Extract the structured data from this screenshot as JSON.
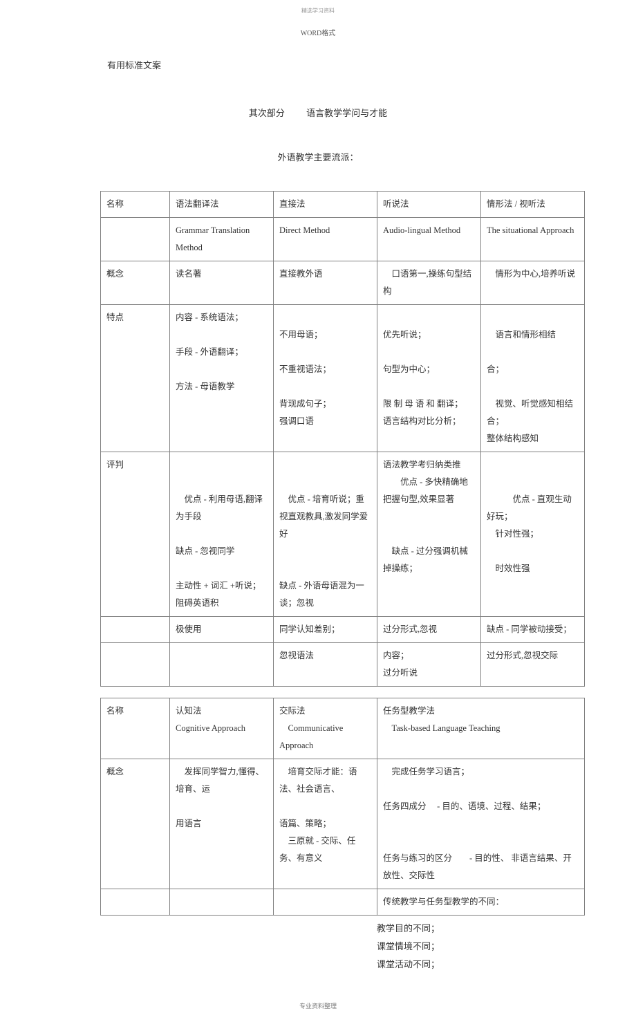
{
  "tiny_header": "精选学习资料",
  "word_format": "WORD格式",
  "pretext": "有用标准文案",
  "section_title_a": "其次部分",
  "section_title_b": "语言教学学问与才能",
  "subtitle": "外语教学主要流派：",
  "table1": {
    "r0c0": "名称",
    "r0c1": "语法翻译法",
    "r0c2": "直接法",
    "r0c3": "听说法",
    "r0c4": "情形法 / 视听法",
    "r1c0": "",
    "r1c1": "Grammar Translation Method",
    "r1c2": "Direct Method",
    "r1c3": "Audio-lingual Method",
    "r1c4": "The situational Approach",
    "r2c0": "概念",
    "r2c1": "读名著",
    "r2c2": "直接教外语",
    "r2c3": "　口语第一,操练句型结构",
    "r2c4": "　情形为中心,培养听说",
    "r3c0": "特点",
    "r3c1": "内容 - 系统语法；\n\n手段 - 外语翻译；\n\n方法 - 母语教学",
    "r3c2": "\n不用母语；\n\n不重视语法；\n\n背现成句子；\n强调口语",
    "r3c3": "\n优先听说；\n\n句型为中心；\n\n限 制 母 语 和 翻译；\n语言结构对比分析；",
    "r3c4": "\n　语言和情形相结\n\n合；\n\n　视觉、听觉感知相结合；\n整体结构感知",
    "r4c0": "评判",
    "r4c1": "\n\n　优点 - 利用母语,翻译为手段\n\n缺点   -   忽视同学\n\n主动性  + 词汇 +听说；阻碍英语积",
    "r4c2": "\n\n　优点 - 培育听说；重视直观教具,激发同学爱好\n\n\n缺点 - 外语母语混为一谈；忽视",
    "r4c3": "语法教学考归纳类推\n　　优点    -   多快精确地把握句型,效果显著\n\n\n　缺点    -    过分强调机械掉操练；",
    "r4c4": "\n\n　　　优点    -    直观生动好玩；\n　针对性强；\n\n　时效性强",
    "r5c0": "",
    "r5c1": "极使用",
    "r5c2": "同学认知差别；",
    "r5c3": "过分形式,忽视",
    "r5c4": "缺点   -   同学被动接受；",
    "r6c0": "",
    "r6c1": "",
    "r6c2": "忽视语法",
    "r6c3": "内容；\n过分听说",
    "r6c4": "过分形式,忽视交际"
  },
  "table2": {
    "r0c0": "名称",
    "r0c1": "认知法\nCognitive Approach",
    "r0c2": "交际法\n　Communicative Approach",
    "r0c3": "任务型教学法\n　Task-based Language Teaching",
    "r1c0": "概念",
    "r1c1": "　发挥同学智力,懂得、培育、运\n\n用语言",
    "r1c2": "　培育交际才能：语法、社会语言、\n\n语篇、策略；\n　三原就 - 交际、任务、有意义",
    "r1c3": "　完成任务学习语言；\n\n任务四成分　 - 目的、语境、过程、结果；\n\n\n任务与练习的区分　　- 目的性、 非语言结果、开放性、交际性",
    "r2c0": "",
    "r2c1": "",
    "r2c2": "",
    "r2c3": "传统教学与任务型教学的不同："
  },
  "trailing": {
    "l1": "教学目的不同；",
    "l2": "课堂情境不同；",
    "l3": "课堂活动不同；"
  },
  "footer": "专业资料整理"
}
